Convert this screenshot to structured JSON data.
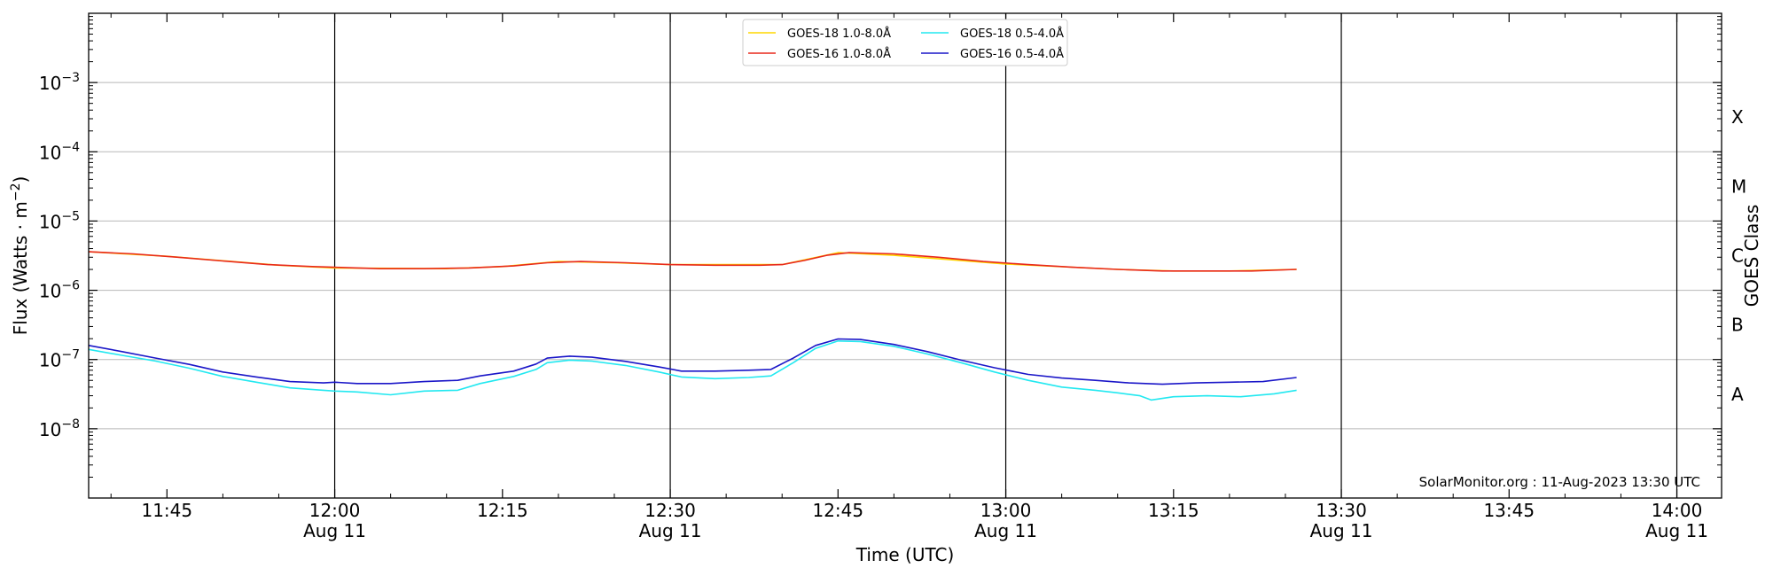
{
  "chart_data": {
    "type": "line",
    "xlabel": "Time (UTC)",
    "ylabel": "Flux (Watts · m",
    "ylabel_sup": "−2",
    "ylabel_close": ")",
    "right_label": "GOES Class",
    "y_scale": "log",
    "ylim": [
      1e-09,
      0.01
    ],
    "xlim": [
      "2023-08-11 11:38",
      "2023-08-11 14:04"
    ],
    "grid": "horizontal at decades",
    "legend_position": "top-center",
    "credit": "SolarMonitor.org : 11-Aug-2023 13:30 UTC",
    "y_ticks": [
      {
        "value": 0.001,
        "base": "10",
        "exp": "−3"
      },
      {
        "value": 0.0001,
        "base": "10",
        "exp": "−4"
      },
      {
        "value": 1e-05,
        "base": "10",
        "exp": "−5"
      },
      {
        "value": 1e-06,
        "base": "10",
        "exp": "−6"
      },
      {
        "value": 1e-07,
        "base": "10",
        "exp": "−7"
      },
      {
        "value": 1e-08,
        "base": "10",
        "exp": "−8"
      }
    ],
    "x_ticks": [
      {
        "time": "11:45",
        "label": "11:45",
        "date": ""
      },
      {
        "time": "12:00",
        "label": "12:00",
        "date": "Aug 11"
      },
      {
        "time": "12:15",
        "label": "12:15",
        "date": ""
      },
      {
        "time": "12:30",
        "label": "12:30",
        "date": "Aug 11"
      },
      {
        "time": "12:45",
        "label": "12:45",
        "date": ""
      },
      {
        "time": "13:00",
        "label": "13:00",
        "date": "Aug 11"
      },
      {
        "time": "13:15",
        "label": "13:15",
        "date": ""
      },
      {
        "time": "13:30",
        "label": "13:30",
        "date": "Aug 11"
      },
      {
        "time": "13:45",
        "label": "13:45",
        "date": ""
      },
      {
        "time": "14:00",
        "label": "14:00",
        "date": "Aug 11"
      }
    ],
    "vlines": [
      "12:00",
      "12:30",
      "13:00",
      "13:30",
      "14:00"
    ],
    "goes_classes": [
      {
        "label": "X",
        "value": 0.000316
      },
      {
        "label": "M",
        "value": 3.16e-05
      },
      {
        "label": "C",
        "value": 3.16e-06
      },
      {
        "label": "B",
        "value": 3.16e-07
      },
      {
        "label": "A",
        "value": 3.16e-08
      }
    ],
    "series": [
      {
        "name": "GOES-18 1.0-8.0Å",
        "color": "#ffd700",
        "points": [
          [
            "11:38",
            3.6e-06
          ],
          [
            "11:45",
            3.1e-06
          ],
          [
            "11:55",
            2.3e-06
          ],
          [
            "12:00",
            2.1e-06
          ],
          [
            "12:10",
            2.05e-06
          ],
          [
            "12:15",
            2.2e-06
          ],
          [
            "12:20",
            2.6e-06
          ],
          [
            "12:25",
            2.5e-06
          ],
          [
            "12:30",
            2.35e-06
          ],
          [
            "12:40",
            2.35e-06
          ],
          [
            "12:45",
            3.5e-06
          ],
          [
            "12:50",
            3.2e-06
          ],
          [
            "13:00",
            2.4e-06
          ],
          [
            "13:10",
            2e-06
          ],
          [
            "13:15",
            1.9e-06
          ],
          [
            "13:20",
            1.9e-06
          ],
          [
            "13:26",
            2e-06
          ]
        ]
      },
      {
        "name": "GOES-16 1.0-8.0Å",
        "color": "#e8291c",
        "points": [
          [
            "11:38",
            3.6e-06
          ],
          [
            "11:42",
            3.35e-06
          ],
          [
            "11:46",
            3e-06
          ],
          [
            "11:50",
            2.65e-06
          ],
          [
            "11:54",
            2.35e-06
          ],
          [
            "11:58",
            2.2e-06
          ],
          [
            "12:00",
            2.15e-06
          ],
          [
            "12:04",
            2.05e-06
          ],
          [
            "12:08",
            2.05e-06
          ],
          [
            "12:12",
            2.1e-06
          ],
          [
            "12:16",
            2.25e-06
          ],
          [
            "12:19",
            2.5e-06
          ],
          [
            "12:22",
            2.6e-06
          ],
          [
            "12:26",
            2.5e-06
          ],
          [
            "12:30",
            2.35e-06
          ],
          [
            "12:34",
            2.3e-06
          ],
          [
            "12:38",
            2.3e-06
          ],
          [
            "12:40",
            2.35e-06
          ],
          [
            "12:42",
            2.7e-06
          ],
          [
            "12:44",
            3.2e-06
          ],
          [
            "12:46",
            3.5e-06
          ],
          [
            "12:50",
            3.35e-06
          ],
          [
            "12:54",
            3e-06
          ],
          [
            "12:58",
            2.6e-06
          ],
          [
            "13:02",
            2.35e-06
          ],
          [
            "13:06",
            2.15e-06
          ],
          [
            "13:10",
            2e-06
          ],
          [
            "13:14",
            1.9e-06
          ],
          [
            "13:18",
            1.9e-06
          ],
          [
            "13:22",
            1.9e-06
          ],
          [
            "13:26",
            2e-06
          ]
        ]
      },
      {
        "name": "GOES-18 0.5-4.0Å",
        "color": "#22e8f0",
        "points": [
          [
            "11:38",
            1.4e-07
          ],
          [
            "11:41",
            1.15e-07
          ],
          [
            "11:44",
            9.5e-08
          ],
          [
            "11:47",
            7.5e-08
          ],
          [
            "11:50",
            5.7e-08
          ],
          [
            "11:53",
            4.7e-08
          ],
          [
            "11:56",
            3.9e-08
          ],
          [
            "11:59",
            3.6e-08
          ],
          [
            "12:00",
            3.5e-08
          ],
          [
            "12:02",
            3.4e-08
          ],
          [
            "12:05",
            3.1e-08
          ],
          [
            "12:08",
            3.5e-08
          ],
          [
            "12:11",
            3.6e-08
          ],
          [
            "12:13",
            4.5e-08
          ],
          [
            "12:16",
            5.7e-08
          ],
          [
            "12:18",
            7.2e-08
          ],
          [
            "12:19",
            9e-08
          ],
          [
            "12:21",
            9.8e-08
          ],
          [
            "12:23",
            9.5e-08
          ],
          [
            "12:26",
            8.2e-08
          ],
          [
            "12:29",
            6.6e-08
          ],
          [
            "12:31",
            5.6e-08
          ],
          [
            "12:34",
            5.3e-08
          ],
          [
            "12:37",
            5.5e-08
          ],
          [
            "12:39",
            5.8e-08
          ],
          [
            "12:41",
            9e-08
          ],
          [
            "12:43",
            1.45e-07
          ],
          [
            "12:45",
            1.85e-07
          ],
          [
            "12:47",
            1.82e-07
          ],
          [
            "12:50",
            1.55e-07
          ],
          [
            "12:53",
            1.2e-07
          ],
          [
            "12:56",
            9e-08
          ],
          [
            "12:59",
            6.6e-08
          ],
          [
            "13:02",
            5e-08
          ],
          [
            "13:05",
            4e-08
          ],
          [
            "13:08",
            3.6e-08
          ],
          [
            "13:10",
            3.3e-08
          ],
          [
            "13:12",
            3e-08
          ],
          [
            "13:13",
            2.6e-08
          ],
          [
            "13:15",
            2.9e-08
          ],
          [
            "13:18",
            3e-08
          ],
          [
            "13:21",
            2.9e-08
          ],
          [
            "13:24",
            3.2e-08
          ],
          [
            "13:26",
            3.6e-08
          ]
        ]
      },
      {
        "name": "GOES-16 0.5-4.0Å",
        "color": "#1a16c8",
        "points": [
          [
            "11:38",
            1.6e-07
          ],
          [
            "11:41",
            1.3e-07
          ],
          [
            "11:44",
            1.05e-07
          ],
          [
            "11:47",
            8.5e-08
          ],
          [
            "11:50",
            6.6e-08
          ],
          [
            "11:53",
            5.6e-08
          ],
          [
            "11:56",
            4.8e-08
          ],
          [
            "11:59",
            4.6e-08
          ],
          [
            "12:00",
            4.7e-08
          ],
          [
            "12:02",
            4.5e-08
          ],
          [
            "12:05",
            4.5e-08
          ],
          [
            "12:08",
            4.8e-08
          ],
          [
            "12:11",
            5e-08
          ],
          [
            "12:13",
            5.8e-08
          ],
          [
            "12:16",
            6.8e-08
          ],
          [
            "12:18",
            8.6e-08
          ],
          [
            "12:19",
            1.05e-07
          ],
          [
            "12:21",
            1.12e-07
          ],
          [
            "12:23",
            1.08e-07
          ],
          [
            "12:26",
            9.4e-08
          ],
          [
            "12:29",
            7.8e-08
          ],
          [
            "12:31",
            6.8e-08
          ],
          [
            "12:34",
            6.8e-08
          ],
          [
            "12:37",
            7e-08
          ],
          [
            "12:39",
            7.2e-08
          ],
          [
            "12:41",
            1.05e-07
          ],
          [
            "12:43",
            1.6e-07
          ],
          [
            "12:45",
            1.98e-07
          ],
          [
            "12:47",
            1.95e-07
          ],
          [
            "12:50",
            1.65e-07
          ],
          [
            "12:53",
            1.3e-07
          ],
          [
            "12:56",
            9.8e-08
          ],
          [
            "12:59",
            7.6e-08
          ],
          [
            "13:02",
            6.1e-08
          ],
          [
            "13:05",
            5.4e-08
          ],
          [
            "13:08",
            5e-08
          ],
          [
            "13:11",
            4.6e-08
          ],
          [
            "13:14",
            4.4e-08
          ],
          [
            "13:17",
            4.6e-08
          ],
          [
            "13:20",
            4.7e-08
          ],
          [
            "13:23",
            4.8e-08
          ],
          [
            "13:26",
            5.5e-08
          ]
        ]
      }
    ]
  }
}
